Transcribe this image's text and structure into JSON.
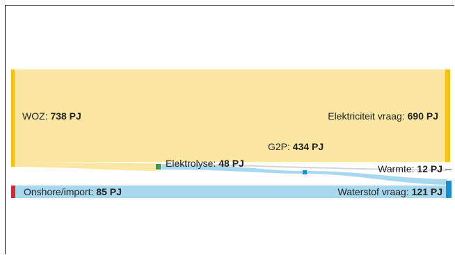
{
  "nodes": {
    "woz": {
      "name": "WOZ: ",
      "value": "738 PJ"
    },
    "elektriciteit_vraag": {
      "name": "Elektriciteit vraag: ",
      "value": "690 PJ"
    },
    "g2p": {
      "name": "G2P: ",
      "value": "434 PJ"
    },
    "elektrolyse": {
      "name": "Elektrolyse: ",
      "value": "48 PJ"
    },
    "warmte": {
      "name": "Warmte: ",
      "value": "12 PJ"
    },
    "onshore_import": {
      "name": "Onshore/import: ",
      "value": "85 PJ"
    },
    "waterstof_vraag": {
      "name": "Waterstof vraag: ",
      "value": "121 PJ"
    }
  },
  "colors": {
    "electricity_flow": "#fbe7a1",
    "electricity_node": "#f6c20f",
    "hydrogen_flow": "#a8d8ee",
    "hydrogen_node": "#1a8fd0",
    "import_node": "#d1292f",
    "electrolyse_node": "#3e9b3f",
    "heat_flow": "#c8c8c8",
    "heat_node": "#9a9a9a"
  }
}
